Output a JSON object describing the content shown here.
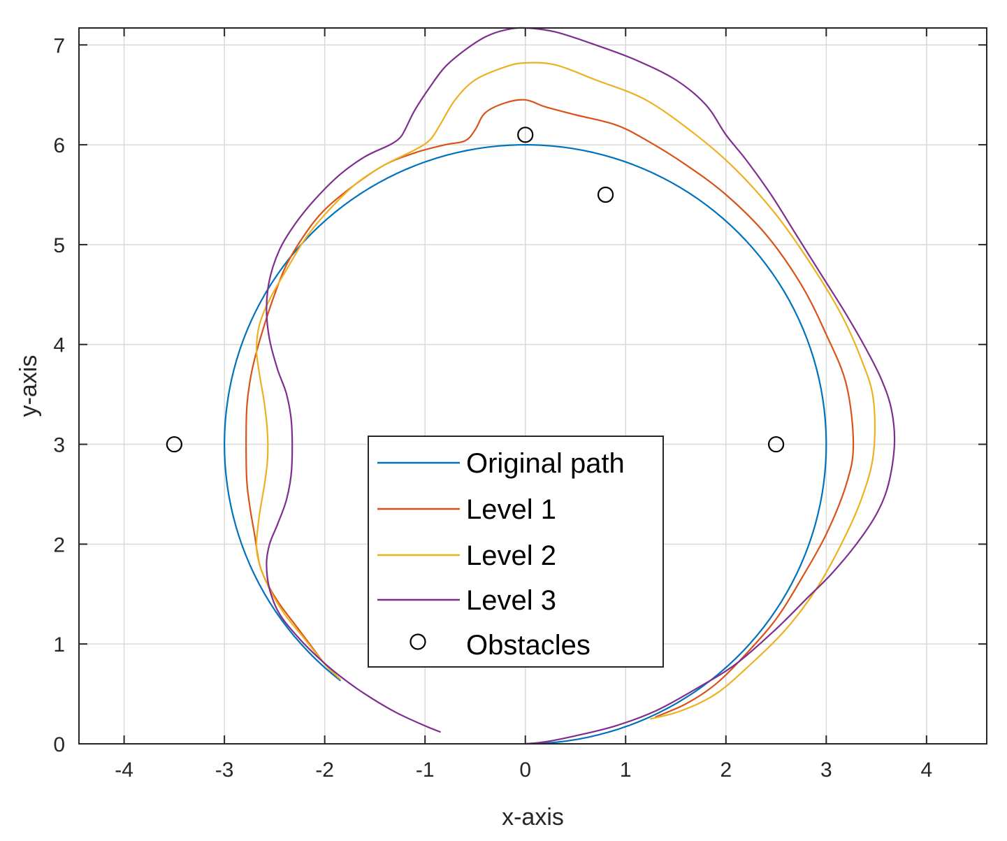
{
  "chart_data": {
    "type": "line",
    "xlabel": "x-axis",
    "ylabel": "y-axis",
    "xlim": [
      -4.45,
      4.6
    ],
    "ylim": [
      0,
      7.17
    ],
    "xticks": [
      -4,
      -3,
      -2,
      -1,
      0,
      1,
      2,
      3,
      4
    ],
    "yticks": [
      0,
      1,
      2,
      3,
      4,
      5,
      6,
      7
    ],
    "grid": true,
    "legend_position": "center",
    "series": [
      {
        "name": "Original path",
        "color": "#0072BD",
        "style": "circle",
        "center": [
          0,
          3
        ],
        "radius": 3,
        "theta_start_deg": -90,
        "theta_end_deg": 232
      },
      {
        "name": "Level 1",
        "color": "#D95319",
        "x": [
          -1.85,
          -2.0,
          -2.15,
          -2.3,
          -2.45,
          -2.57,
          -2.65,
          -2.7,
          -2.75,
          -2.78,
          -2.78,
          -2.75,
          -2.7,
          -2.6,
          -2.5,
          -2.38,
          -2.2,
          -2.0,
          -1.7,
          -1.4,
          -1.1,
          -0.8,
          -0.6,
          -0.5,
          -0.4,
          -0.2,
          0.0,
          0.2,
          0.5,
          0.9,
          1.2,
          1.6,
          2.0,
          2.4,
          2.75,
          3.0,
          3.2,
          3.27,
          3.2,
          3.0,
          2.75,
          2.5,
          2.2,
          1.9,
          1.6,
          1.3
        ],
        "y": [
          0.65,
          0.8,
          1.0,
          1.2,
          1.4,
          1.6,
          1.8,
          2.1,
          2.4,
          2.7,
          3.3,
          3.6,
          3.85,
          4.2,
          4.5,
          4.8,
          5.1,
          5.35,
          5.6,
          5.8,
          5.92,
          6.0,
          6.04,
          6.15,
          6.32,
          6.42,
          6.45,
          6.38,
          6.3,
          6.2,
          6.05,
          5.8,
          5.5,
          5.1,
          4.6,
          4.1,
          3.6,
          3.0,
          2.6,
          2.1,
          1.65,
          1.25,
          0.9,
          0.6,
          0.4,
          0.27
        ]
      },
      {
        "name": "Level 2",
        "color": "#EDB120",
        "x": [
          -1.85,
          -2.0,
          -2.2,
          -2.4,
          -2.55,
          -2.65,
          -2.68,
          -2.65,
          -2.6,
          -2.57,
          -2.57,
          -2.6,
          -2.65,
          -2.68,
          -2.65,
          -2.55,
          -2.38,
          -2.2,
          -2.0,
          -1.7,
          -1.4,
          -1.1,
          -0.95,
          -0.85,
          -0.7,
          -0.5,
          -0.2,
          0.0,
          0.3,
          0.7,
          1.2,
          1.7,
          2.1,
          2.5,
          2.85,
          3.15,
          3.35,
          3.47,
          3.47,
          3.35,
          3.15,
          2.9,
          2.6,
          2.25,
          1.9,
          1.55,
          1.25
        ],
        "y": [
          0.65,
          0.8,
          1.05,
          1.3,
          1.55,
          1.8,
          2.0,
          2.3,
          2.6,
          2.85,
          3.1,
          3.4,
          3.7,
          3.95,
          4.2,
          4.45,
          4.75,
          5.05,
          5.3,
          5.6,
          5.8,
          5.95,
          6.05,
          6.2,
          6.45,
          6.65,
          6.78,
          6.82,
          6.8,
          6.65,
          6.45,
          6.1,
          5.75,
          5.3,
          4.8,
          4.3,
          3.85,
          3.45,
          2.9,
          2.45,
          2.0,
          1.55,
          1.15,
          0.8,
          0.5,
          0.33,
          0.25
        ]
      },
      {
        "name": "Level 3",
        "color": "#7E2F8E",
        "x": [
          -0.85,
          -1.0,
          -1.3,
          -1.6,
          -1.85,
          -2.05,
          -2.25,
          -2.45,
          -2.55,
          -2.58,
          -2.55,
          -2.47,
          -2.38,
          -2.33,
          -2.33,
          -2.38,
          -2.47,
          -2.55,
          -2.58,
          -2.55,
          -2.45,
          -2.3,
          -2.1,
          -1.85,
          -1.6,
          -1.35,
          -1.25,
          -1.2,
          -1.1,
          -0.95,
          -0.8,
          -0.6,
          -0.4,
          -0.2,
          0.0,
          0.3,
          0.7,
          1.1,
          1.5,
          1.8,
          2.0,
          2.2,
          2.45,
          2.7,
          2.95,
          3.2,
          3.4,
          3.55,
          3.65,
          3.68,
          3.62,
          3.5,
          3.3,
          3.05,
          2.8,
          2.5,
          2.1,
          1.7,
          1.3,
          0.9,
          0.5,
          0.2,
          0.0
        ],
        "y": [
          0.12,
          0.18,
          0.32,
          0.5,
          0.68,
          0.85,
          1.05,
          1.3,
          1.55,
          1.8,
          2.0,
          2.2,
          2.45,
          2.75,
          3.2,
          3.5,
          3.75,
          4.05,
          4.35,
          4.65,
          4.95,
          5.2,
          5.45,
          5.7,
          5.88,
          6.0,
          6.07,
          6.15,
          6.35,
          6.58,
          6.78,
          6.95,
          7.08,
          7.15,
          7.17,
          7.13,
          7.0,
          6.85,
          6.65,
          6.4,
          6.1,
          5.85,
          5.5,
          5.1,
          4.7,
          4.3,
          3.95,
          3.65,
          3.35,
          3.0,
          2.6,
          2.3,
          2.0,
          1.7,
          1.45,
          1.15,
          0.8,
          0.55,
          0.33,
          0.18,
          0.08,
          0.02,
          0.0
        ]
      }
    ],
    "obstacles": {
      "name": "Obstacles",
      "color": "#000000",
      "marker": "circle",
      "x": [
        -3.5,
        0.0,
        0.8,
        2.5
      ],
      "y": [
        3.0,
        6.1,
        5.5,
        3.0
      ]
    }
  }
}
